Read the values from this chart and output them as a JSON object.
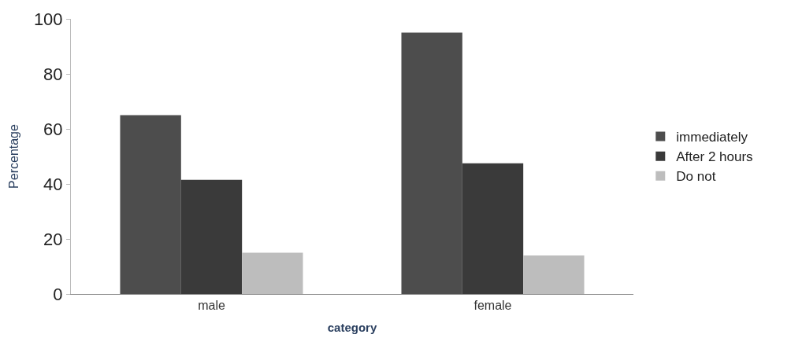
{
  "chart_data": {
    "type": "bar",
    "xlabel": "category",
    "ylabel": "Percentage",
    "categories": [
      "male",
      "female"
    ],
    "series": [
      {
        "name": "immediately",
        "color": "#4d4d4d",
        "values": [
          65,
          95
        ]
      },
      {
        "name": "After 2 hours",
        "color": "#3a3a3a",
        "values": [
          41.5,
          47.5
        ]
      },
      {
        "name": "Do not",
        "color": "#bdbdbd",
        "values": [
          15,
          14
        ]
      }
    ],
    "ylim": [
      0,
      100
    ],
    "yticks": [
      0,
      20,
      40,
      60,
      80,
      100
    ],
    "legend": "right"
  }
}
